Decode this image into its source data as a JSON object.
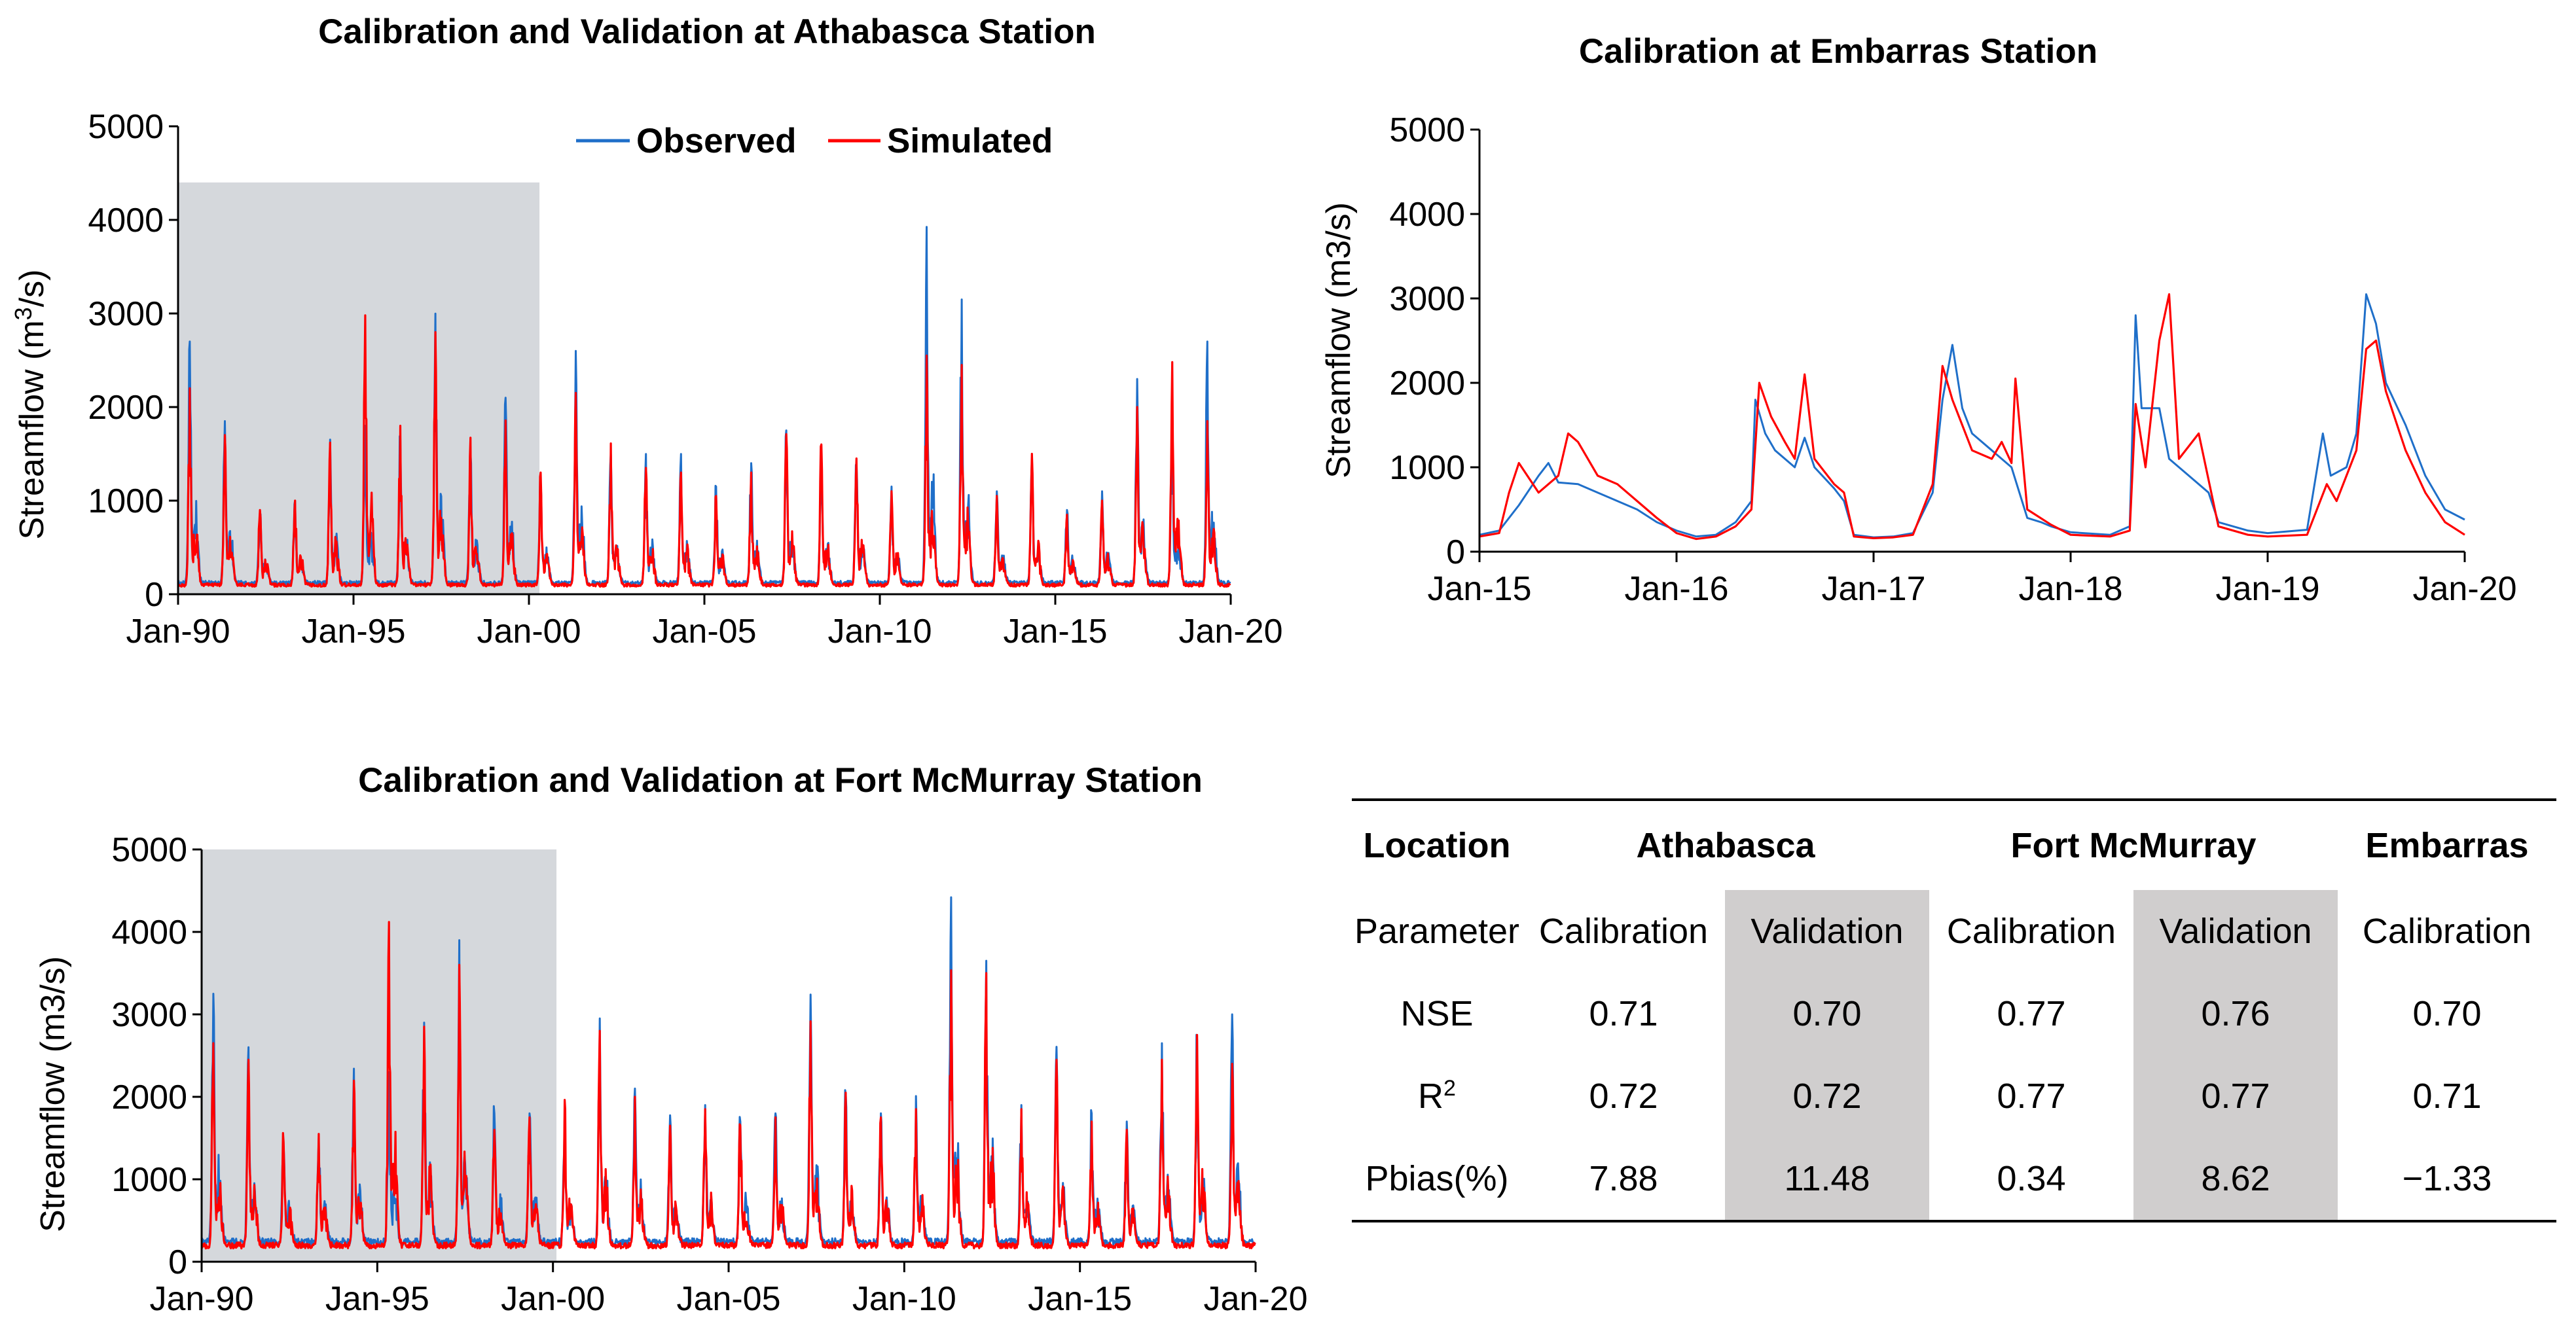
{
  "colors": {
    "observed": "#1f6fc9",
    "simulated": "#ff0000",
    "shade": "#d5d8dc",
    "table_shade": "#d0cece"
  },
  "chart_data": [
    {
      "id": "athabasca",
      "type": "line",
      "title": "Calibration and Validation at Athabasca Station",
      "ylabel_prefix": "Streamflow (m",
      "ylabel_sup": "3",
      "ylabel_suffix": "/s)",
      "xlabel": "",
      "ylim": [
        0,
        5000
      ],
      "yticks": [
        0,
        1000,
        2000,
        3000,
        4000,
        5000
      ],
      "xlim": [
        1990,
        2020
      ],
      "xticks": [
        {
          "x": 1990,
          "label": "Jan-90"
        },
        {
          "x": 1995,
          "label": "Jan-95"
        },
        {
          "x": 2000,
          "label": "Jan-00"
        },
        {
          "x": 2005,
          "label": "Jan-05"
        },
        {
          "x": 2010,
          "label": "Jan-10"
        },
        {
          "x": 2015,
          "label": "Jan-15"
        },
        {
          "x": 2020,
          "label": "Jan-20"
        }
      ],
      "calibration_period": {
        "x_start": 1990,
        "x_end": 2000.3,
        "y_top": 4400
      },
      "legend": [
        "Observed",
        "Simulated"
      ],
      "series": [
        {
          "name": "Observed",
          "annual_peaks": [
            2700,
            1850,
            850,
            1000,
            1600,
            1800,
            1680,
            2900,
            1500,
            2100,
            1200,
            2600,
            1500,
            1400,
            1400,
            1150,
            1400,
            1750,
            1500,
            1400,
            1150,
            3820,
            3150,
            1100,
            1450,
            900,
            1100,
            2300,
            1700,
            2700
          ],
          "baseflow": 110
        },
        {
          "name": "Simulated",
          "annual_peaks": [
            2200,
            1700,
            900,
            1000,
            1620,
            2980,
            1800,
            2800,
            1600,
            1800,
            1300,
            2150,
            1500,
            1350,
            1300,
            1050,
            1300,
            1700,
            1600,
            1450,
            1100,
            2550,
            2450,
            1050,
            1500,
            850,
            1000,
            2000,
            2480,
            1850
          ],
          "baseflow": 90
        }
      ]
    },
    {
      "id": "embarras",
      "type": "line",
      "title": "Calibration at Embarras Station",
      "ylabel": "Streamflow (m3/s)",
      "xlabel": "",
      "ylim": [
        0,
        5000
      ],
      "yticks": [
        0,
        1000,
        2000,
        3000,
        4000,
        5000
      ],
      "xlim": [
        2015,
        2020
      ],
      "xticks": [
        {
          "x": 2015,
          "label": "Jan-15"
        },
        {
          "x": 2016,
          "label": "Jan-16"
        },
        {
          "x": 2017,
          "label": "Jan-17"
        },
        {
          "x": 2018,
          "label": "Jan-18"
        },
        {
          "x": 2019,
          "label": "Jan-19"
        },
        {
          "x": 2020,
          "label": "Jan-20"
        }
      ],
      "series": [
        {
          "name": "Observed",
          "points": [
            [
              2015.0,
              200
            ],
            [
              2015.1,
              250
            ],
            [
              2015.2,
              550
            ],
            [
              2015.3,
              900
            ],
            [
              2015.35,
              1050
            ],
            [
              2015.4,
              820
            ],
            [
              2015.5,
              800
            ],
            [
              2015.6,
              700
            ],
            [
              2015.7,
              600
            ],
            [
              2015.8,
              500
            ],
            [
              2015.9,
              350
            ],
            [
              2016.0,
              250
            ],
            [
              2016.1,
              180
            ],
            [
              2016.2,
              200
            ],
            [
              2016.3,
              350
            ],
            [
              2016.38,
              600
            ],
            [
              2016.4,
              1800
            ],
            [
              2016.45,
              1400
            ],
            [
              2016.5,
              1200
            ],
            [
              2016.6,
              1000
            ],
            [
              2016.65,
              1350
            ],
            [
              2016.7,
              1000
            ],
            [
              2016.8,
              750
            ],
            [
              2016.85,
              600
            ],
            [
              2016.9,
              200
            ],
            [
              2017.0,
              170
            ],
            [
              2017.1,
              180
            ],
            [
              2017.2,
              220
            ],
            [
              2017.3,
              700
            ],
            [
              2017.35,
              1800
            ],
            [
              2017.4,
              2450
            ],
            [
              2017.45,
              1700
            ],
            [
              2017.5,
              1400
            ],
            [
              2017.6,
              1200
            ],
            [
              2017.7,
              1000
            ],
            [
              2017.78,
              400
            ],
            [
              2017.85,
              350
            ],
            [
              2017.9,
              300
            ],
            [
              2018.0,
              230
            ],
            [
              2018.2,
              200
            ],
            [
              2018.3,
              300
            ],
            [
              2018.33,
              2800
            ],
            [
              2018.36,
              1700
            ],
            [
              2018.45,
              1700
            ],
            [
              2018.5,
              1100
            ],
            [
              2018.6,
              900
            ],
            [
              2018.7,
              700
            ],
            [
              2018.75,
              350
            ],
            [
              2018.9,
              250
            ],
            [
              2019.0,
              220
            ],
            [
              2019.2,
              260
            ],
            [
              2019.28,
              1400
            ],
            [
              2019.32,
              900
            ],
            [
              2019.4,
              1000
            ],
            [
              2019.45,
              1400
            ],
            [
              2019.5,
              3050
            ],
            [
              2019.55,
              2700
            ],
            [
              2019.6,
              2000
            ],
            [
              2019.7,
              1500
            ],
            [
              2019.8,
              900
            ],
            [
              2019.9,
              500
            ],
            [
              2020.0,
              380
            ]
          ]
        },
        {
          "name": "Simulated",
          "points": [
            [
              2015.0,
              180
            ],
            [
              2015.1,
              220
            ],
            [
              2015.15,
              700
            ],
            [
              2015.2,
              1050
            ],
            [
              2015.3,
              700
            ],
            [
              2015.4,
              900
            ],
            [
              2015.45,
              1400
            ],
            [
              2015.5,
              1300
            ],
            [
              2015.6,
              900
            ],
            [
              2015.7,
              800
            ],
            [
              2015.8,
              600
            ],
            [
              2015.9,
              400
            ],
            [
              2016.0,
              220
            ],
            [
              2016.1,
              150
            ],
            [
              2016.2,
              180
            ],
            [
              2016.3,
              300
            ],
            [
              2016.38,
              500
            ],
            [
              2016.42,
              2000
            ],
            [
              2016.48,
              1600
            ],
            [
              2016.55,
              1300
            ],
            [
              2016.6,
              1100
            ],
            [
              2016.65,
              2100
            ],
            [
              2016.7,
              1100
            ],
            [
              2016.8,
              800
            ],
            [
              2016.85,
              700
            ],
            [
              2016.9,
              180
            ],
            [
              2017.0,
              160
            ],
            [
              2017.1,
              170
            ],
            [
              2017.2,
              200
            ],
            [
              2017.3,
              800
            ],
            [
              2017.35,
              2200
            ],
            [
              2017.4,
              1800
            ],
            [
              2017.5,
              1200
            ],
            [
              2017.6,
              1100
            ],
            [
              2017.65,
              1300
            ],
            [
              2017.7,
              1050
            ],
            [
              2017.72,
              2050
            ],
            [
              2017.78,
              500
            ],
            [
              2017.9,
              320
            ],
            [
              2018.0,
              200
            ],
            [
              2018.2,
              180
            ],
            [
              2018.3,
              250
            ],
            [
              2018.33,
              1750
            ],
            [
              2018.38,
              1000
            ],
            [
              2018.45,
              2500
            ],
            [
              2018.5,
              3050
            ],
            [
              2018.55,
              1100
            ],
            [
              2018.65,
              1400
            ],
            [
              2018.75,
              300
            ],
            [
              2018.9,
              200
            ],
            [
              2019.0,
              180
            ],
            [
              2019.2,
              200
            ],
            [
              2019.3,
              800
            ],
            [
              2019.35,
              600
            ],
            [
              2019.45,
              1200
            ],
            [
              2019.5,
              2400
            ],
            [
              2019.55,
              2500
            ],
            [
              2019.6,
              1900
            ],
            [
              2019.7,
              1200
            ],
            [
              2019.8,
              700
            ],
            [
              2019.9,
              350
            ],
            [
              2020.0,
              200
            ]
          ]
        }
      ]
    },
    {
      "id": "fortmcmurray",
      "type": "line",
      "title": "Calibration and Validation at Fort McMurray Station",
      "ylabel": "Streamflow (m3/s)",
      "xlabel": "",
      "ylim": [
        0,
        5000
      ],
      "yticks": [
        0,
        1000,
        2000,
        3000,
        4000,
        5000
      ],
      "xlim": [
        1990,
        2020
      ],
      "xticks": [
        {
          "x": 1990,
          "label": "Jan-90"
        },
        {
          "x": 1995,
          "label": "Jan-95"
        },
        {
          "x": 2000,
          "label": "Jan-00"
        },
        {
          "x": 2005,
          "label": "Jan-05"
        },
        {
          "x": 2010,
          "label": "Jan-10"
        },
        {
          "x": 2015,
          "label": "Jan-15"
        },
        {
          "x": 2020,
          "label": "Jan-20"
        }
      ],
      "calibration_period": {
        "x_start": 1990,
        "x_end": 2000.1,
        "y_top": 5000
      },
      "series": [
        {
          "name": "Observed",
          "annual_peaks": [
            3250,
            2400,
            1400,
            1500,
            2200,
            2300,
            2900,
            3900,
            1800,
            1800,
            1800,
            2950,
            2100,
            1700,
            1900,
            1700,
            1800,
            3180,
            2000,
            1800,
            1900,
            4420,
            3650,
            1900,
            2500,
            1800,
            1700,
            2650,
            2700,
            3000
          ],
          "baseflow": 220
        },
        {
          "name": "Simulated",
          "annual_peaks": [
            2650,
            2450,
            1450,
            1550,
            2150,
            4120,
            2850,
            3600,
            1600,
            1750,
            1900,
            2800,
            2000,
            1650,
            1850,
            1650,
            1750,
            2800,
            2050,
            1750,
            1850,
            3400,
            3500,
            1850,
            2450,
            1700,
            1600,
            2450,
            2750,
            2400
          ],
          "baseflow": 180
        }
      ]
    }
  ],
  "table": {
    "header": [
      "Location",
      "Athabasca",
      "Fort McMurray",
      "Embarras"
    ],
    "parameter_row": [
      "Parameter",
      "Calibration",
      "Validation",
      "Calibration",
      "Validation",
      "Calibration"
    ],
    "rows": [
      {
        "label": "NSE",
        "label_base": "",
        "label_sup": "",
        "values": [
          "0.71",
          "0.70",
          "0.77",
          "0.76",
          "0.70"
        ]
      },
      {
        "label": "",
        "label_base": "R",
        "label_sup": "2",
        "values": [
          "0.72",
          "0.72",
          "0.77",
          "0.77",
          "0.71"
        ]
      },
      {
        "label": "Pbias(%)",
        "label_base": "",
        "label_sup": "",
        "values": [
          "7.88",
          "11.48",
          "0.34",
          "8.62",
          "−1.33"
        ]
      }
    ]
  }
}
